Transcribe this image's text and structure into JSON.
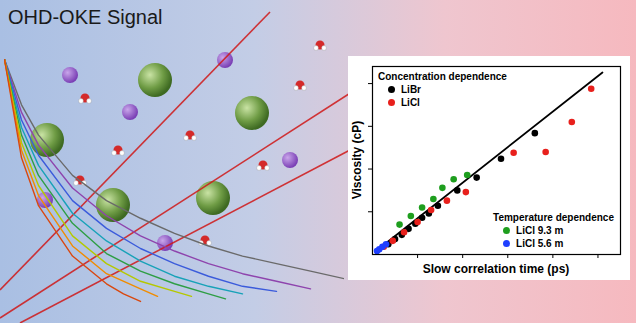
{
  "chart_data": [
    {
      "type": "line",
      "title": "OHD-OKE Signal",
      "tick_labels": false,
      "xlim": [
        0,
        10
      ],
      "ylim": [
        0,
        10
      ],
      "series": [
        {
          "color": "#6a6a6a",
          "x": [
            0,
            0.5,
            1,
            2,
            3,
            4,
            5,
            6,
            7,
            8,
            9,
            10
          ],
          "values": [
            10,
            8.2,
            7.0,
            5.4,
            4.4,
            3.7,
            3.1,
            2.6,
            2.2,
            1.9,
            1.6,
            1.3
          ]
        },
        {
          "color": "#8e44ad",
          "x": [
            0,
            0.5,
            1,
            2,
            3,
            4,
            5,
            6,
            7,
            8,
            9
          ],
          "values": [
            10,
            7.9,
            6.6,
            4.9,
            3.8,
            3.0,
            2.4,
            1.9,
            1.5,
            1.2,
            0.9
          ]
        },
        {
          "color": "#3b5bdb",
          "x": [
            0,
            0.5,
            1,
            2,
            3,
            4,
            5,
            6,
            7,
            8
          ],
          "values": [
            10,
            7.6,
            6.2,
            4.4,
            3.3,
            2.5,
            1.9,
            1.4,
            1.0,
            0.8
          ]
        },
        {
          "color": "#17a2b8",
          "x": [
            0,
            0.5,
            1,
            2,
            3,
            4,
            5,
            6,
            7
          ],
          "values": [
            10,
            7.3,
            5.8,
            3.9,
            2.8,
            2.0,
            1.4,
            1.0,
            0.7
          ]
        },
        {
          "color": "#2e9e44",
          "x": [
            0,
            0.5,
            1,
            2,
            3,
            4,
            5,
            6,
            6.5
          ],
          "values": [
            10,
            7.0,
            5.4,
            3.5,
            2.3,
            1.6,
            1.1,
            0.7,
            0.5
          ]
        },
        {
          "color": "#b5c800",
          "x": [
            0,
            0.5,
            1,
            2,
            3,
            4,
            5,
            5.5
          ],
          "values": [
            10,
            6.7,
            5.0,
            3.0,
            1.9,
            1.2,
            0.8,
            0.6
          ]
        },
        {
          "color": "#f08c00",
          "x": [
            0,
            0.5,
            1,
            2,
            3,
            4,
            4.5
          ],
          "values": [
            10,
            6.4,
            4.6,
            2.6,
            1.5,
            0.9,
            0.6
          ]
        },
        {
          "color": "#d9480f",
          "x": [
            0,
            0.5,
            1,
            2,
            3,
            3.5,
            4
          ],
          "values": [
            10,
            6.1,
            4.2,
            2.2,
            1.1,
            0.7,
            0.4
          ]
        }
      ]
    },
    {
      "type": "scatter",
      "xlabel": "Slow correlation time (ps)",
      "ylabel": "Viscosity (cP)",
      "tick_labels": false,
      "xlim": [
        0,
        55
      ],
      "xticks": [
        10,
        20,
        30,
        40,
        50
      ],
      "ylim": [
        0,
        22
      ],
      "yticks": [
        5,
        10,
        15,
        20
      ],
      "legend_groups": [
        {
          "title": "Concentration dependence",
          "legend": "top-left",
          "names": [
            "LiBr",
            "LiCl"
          ]
        },
        {
          "title": "Temperature dependence",
          "legend": "bottom-right",
          "names": [
            "LiCl 9.3 m",
            "LiCl 5.6 m"
          ]
        }
      ],
      "series": [
        {
          "type": "line",
          "color": "#000000",
          "x": [
            1,
            51
          ],
          "values": [
            0.5,
            21.3
          ]
        },
        {
          "name": "LiBr",
          "color": "#000000",
          "marker": "circle",
          "x": [
            3.5,
            5.0,
            6.5,
            8.0,
            9.5,
            11.0,
            12.5,
            14.5,
            18.8,
            23.1,
            28.5,
            36.0
          ],
          "values": [
            1.2,
            1.8,
            2.3,
            3.0,
            3.6,
            4.3,
            4.8,
            5.7,
            7.5,
            9.0,
            11.2,
            14.2
          ]
        },
        {
          "name": "LiCl",
          "color": "#e8201c",
          "marker": "circle",
          "x": [
            2.5,
            4.5,
            7.0,
            10.0,
            13.0,
            16.5,
            20.7,
            31.3,
            38.4,
            44.2,
            48.5
          ],
          "values": [
            0.9,
            1.6,
            2.6,
            3.8,
            5.2,
            6.3,
            7.3,
            11.9,
            12.0,
            15.5,
            19.4
          ]
        },
        {
          "name": "LiCl 9.3 m",
          "color": "#1e9e1e",
          "marker": "circle",
          "x": [
            6.0,
            8.5,
            11.0,
            13.5,
            15.5,
            18.0,
            21.0
          ],
          "values": [
            3.5,
            4.5,
            5.5,
            6.5,
            7.8,
            8.8,
            9.3
          ]
        },
        {
          "name": "LiCl 5.6 m",
          "color": "#1f3fff",
          "marker": "circle",
          "x": [
            1.0,
            1.5,
            2.2,
            3.0
          ],
          "values": [
            0.4,
            0.6,
            0.9,
            1.2
          ]
        }
      ]
    }
  ]
}
